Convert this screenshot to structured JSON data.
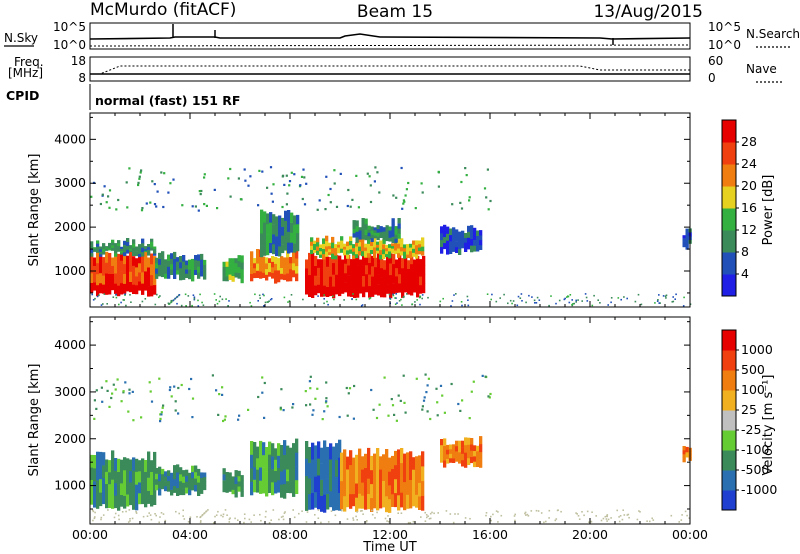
{
  "header": {
    "station": "McMurdo (fitACF)",
    "beam": "Beam 15",
    "date": "13/Aug/2015"
  },
  "panels": {
    "nsky_label": "N.Sky",
    "nsearch_label": "N.Search",
    "nsky_ticks": [
      "10^5",
      "10^0"
    ],
    "nsearch_ticks": [
      "10^5",
      "10^0"
    ],
    "freq_label": [
      "Freq.",
      "[MHz]"
    ],
    "freq_ticks": [
      "18",
      "8"
    ],
    "nave_label": "Nave",
    "nave_ticks": [
      "60",
      "0"
    ],
    "cpid_label": "CPID",
    "cpid_text": "normal (fast) 151 RF"
  },
  "chart_data": [
    {
      "type": "heatmap",
      "name": "power",
      "ylabel": "Slant Range [km]",
      "yticks": [
        1000,
        2000,
        3000,
        4000
      ],
      "ylim": [
        180,
        4600
      ],
      "xticks": [
        "00:00",
        "04:00",
        "08:00",
        "12:00",
        "16:00",
        "20:00",
        "00:00"
      ],
      "xlim_hours": [
        0,
        24
      ],
      "colorbar": {
        "label": "Power [dB]",
        "ticks": [
          "4",
          "8",
          "12",
          "16",
          "20",
          "24",
          "28"
        ],
        "colors": [
          "#1f1fe6",
          "#2050b8",
          "#3a8a5a",
          "#33b040",
          "#e6d020",
          "#f07d10",
          "#f04010",
          "#e60000"
        ]
      },
      "regions": [
        {
          "t0": 0.0,
          "t1": 2.6,
          "r0": 500,
          "r1": 1400,
          "level": 6
        },
        {
          "t0": 0.0,
          "t1": 2.6,
          "r0": 1400,
          "r1": 1650,
          "level": 2
        },
        {
          "t0": 2.6,
          "t1": 4.6,
          "r0": 850,
          "r1": 1350,
          "level": 2
        },
        {
          "t0": 5.3,
          "t1": 6.1,
          "r0": 800,
          "r1": 1300,
          "level": 3
        },
        {
          "t0": 6.4,
          "t1": 8.3,
          "r0": 800,
          "r1": 1400,
          "level": 5
        },
        {
          "t0": 6.8,
          "t1": 8.3,
          "r0": 1400,
          "r1": 2300,
          "level": 2
        },
        {
          "t0": 8.6,
          "t1": 13.3,
          "r0": 450,
          "r1": 1350,
          "level": 7
        },
        {
          "t0": 8.8,
          "t1": 13.3,
          "r0": 1350,
          "r1": 1700,
          "level": 4
        },
        {
          "t0": 10.5,
          "t1": 12.4,
          "r0": 1700,
          "r1": 2100,
          "level": 2
        },
        {
          "t0": 14.0,
          "t1": 15.6,
          "r0": 1450,
          "r1": 1950,
          "level": 1
        },
        {
          "t0": 23.7,
          "t1": 24.0,
          "r0": 1550,
          "r1": 1900,
          "level": 1
        }
      ]
    },
    {
      "type": "heatmap",
      "name": "velocity",
      "ylabel": "Slant Range [km]",
      "yticks": [
        1000,
        2000,
        3000,
        4000
      ],
      "ylim": [
        180,
        4600
      ],
      "xticks": [
        "00:00",
        "04:00",
        "08:00",
        "12:00",
        "16:00",
        "20:00",
        "00:00"
      ],
      "xlim_hours": [
        0,
        24
      ],
      "xlabel": "Time UT",
      "colorbar": {
        "label": "Velocity [m s⁻¹]",
        "ticks": [
          "1000",
          "500",
          "100",
          "25",
          "-25",
          "-100",
          "-500",
          "-1000"
        ],
        "colors": [
          "#1f3fd0",
          "#2a70b0",
          "#3a8a5a",
          "#66cc33",
          "#c0c0c0",
          "#f0b020",
          "#f07d10",
          "#f04010",
          "#e60000"
        ]
      },
      "regions": [
        {
          "t0": 0.0,
          "t1": 2.6,
          "r0": 550,
          "r1": 1650,
          "level": 2
        },
        {
          "t0": 2.6,
          "t1": 4.6,
          "r0": 850,
          "r1": 1350,
          "level": 2
        },
        {
          "t0": 5.3,
          "t1": 6.1,
          "r0": 800,
          "r1": 1300,
          "level": 2
        },
        {
          "t0": 6.4,
          "t1": 8.3,
          "r0": 800,
          "r1": 1900,
          "level": 2
        },
        {
          "t0": 8.6,
          "t1": 10.0,
          "r0": 500,
          "r1": 1900,
          "level": 1
        },
        {
          "t0": 10.0,
          "t1": 13.3,
          "r0": 500,
          "r1": 1700,
          "level": 6
        },
        {
          "t0": 14.0,
          "t1": 15.6,
          "r0": 1450,
          "r1": 1950,
          "level": 6
        },
        {
          "t0": 23.7,
          "t1": 24.0,
          "r0": 1550,
          "r1": 1900,
          "level": 6
        }
      ]
    }
  ]
}
